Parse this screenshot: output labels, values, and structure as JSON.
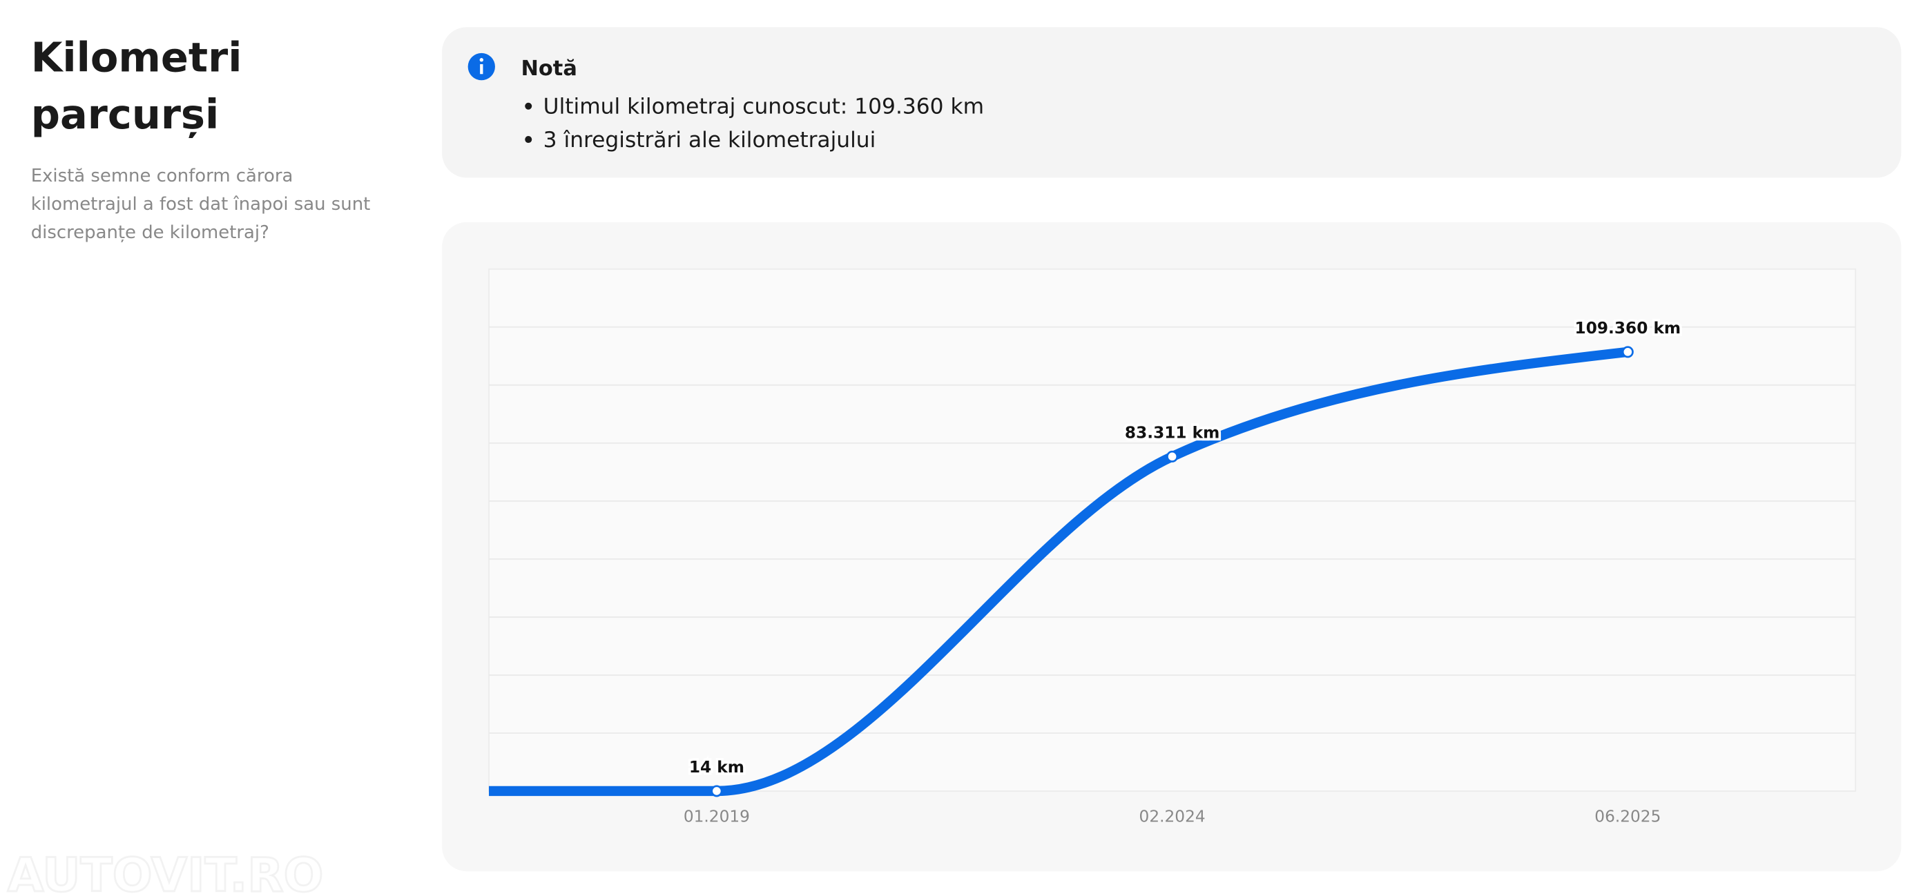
{
  "sidebar": {
    "title_lines": [
      "Kilometri",
      "parcurși"
    ],
    "description_lines": [
      "Există semne conform cărora",
      "kilometrajul a fost dat înapoi sau sunt",
      "discrepanțe de kilometraj?"
    ]
  },
  "note": {
    "title": "Notă",
    "items": [
      "Ultimul kilometraj cunoscut: 109.360 km",
      "3 înregistrări ale kilometrajului"
    ]
  },
  "chart_data": {
    "type": "line",
    "categories": [
      "01.2019",
      "02.2024",
      "06.2025"
    ],
    "series": [
      {
        "name": null,
        "color": "#0a6be6",
        "values": [
          14,
          83311,
          109360
        ],
        "value_labels": [
          "14 km",
          "83.311 km",
          "109.360 km"
        ]
      }
    ],
    "ylim": [
      0,
      130000
    ],
    "grid": true
  },
  "watermark": "AUTOVIT.RO"
}
